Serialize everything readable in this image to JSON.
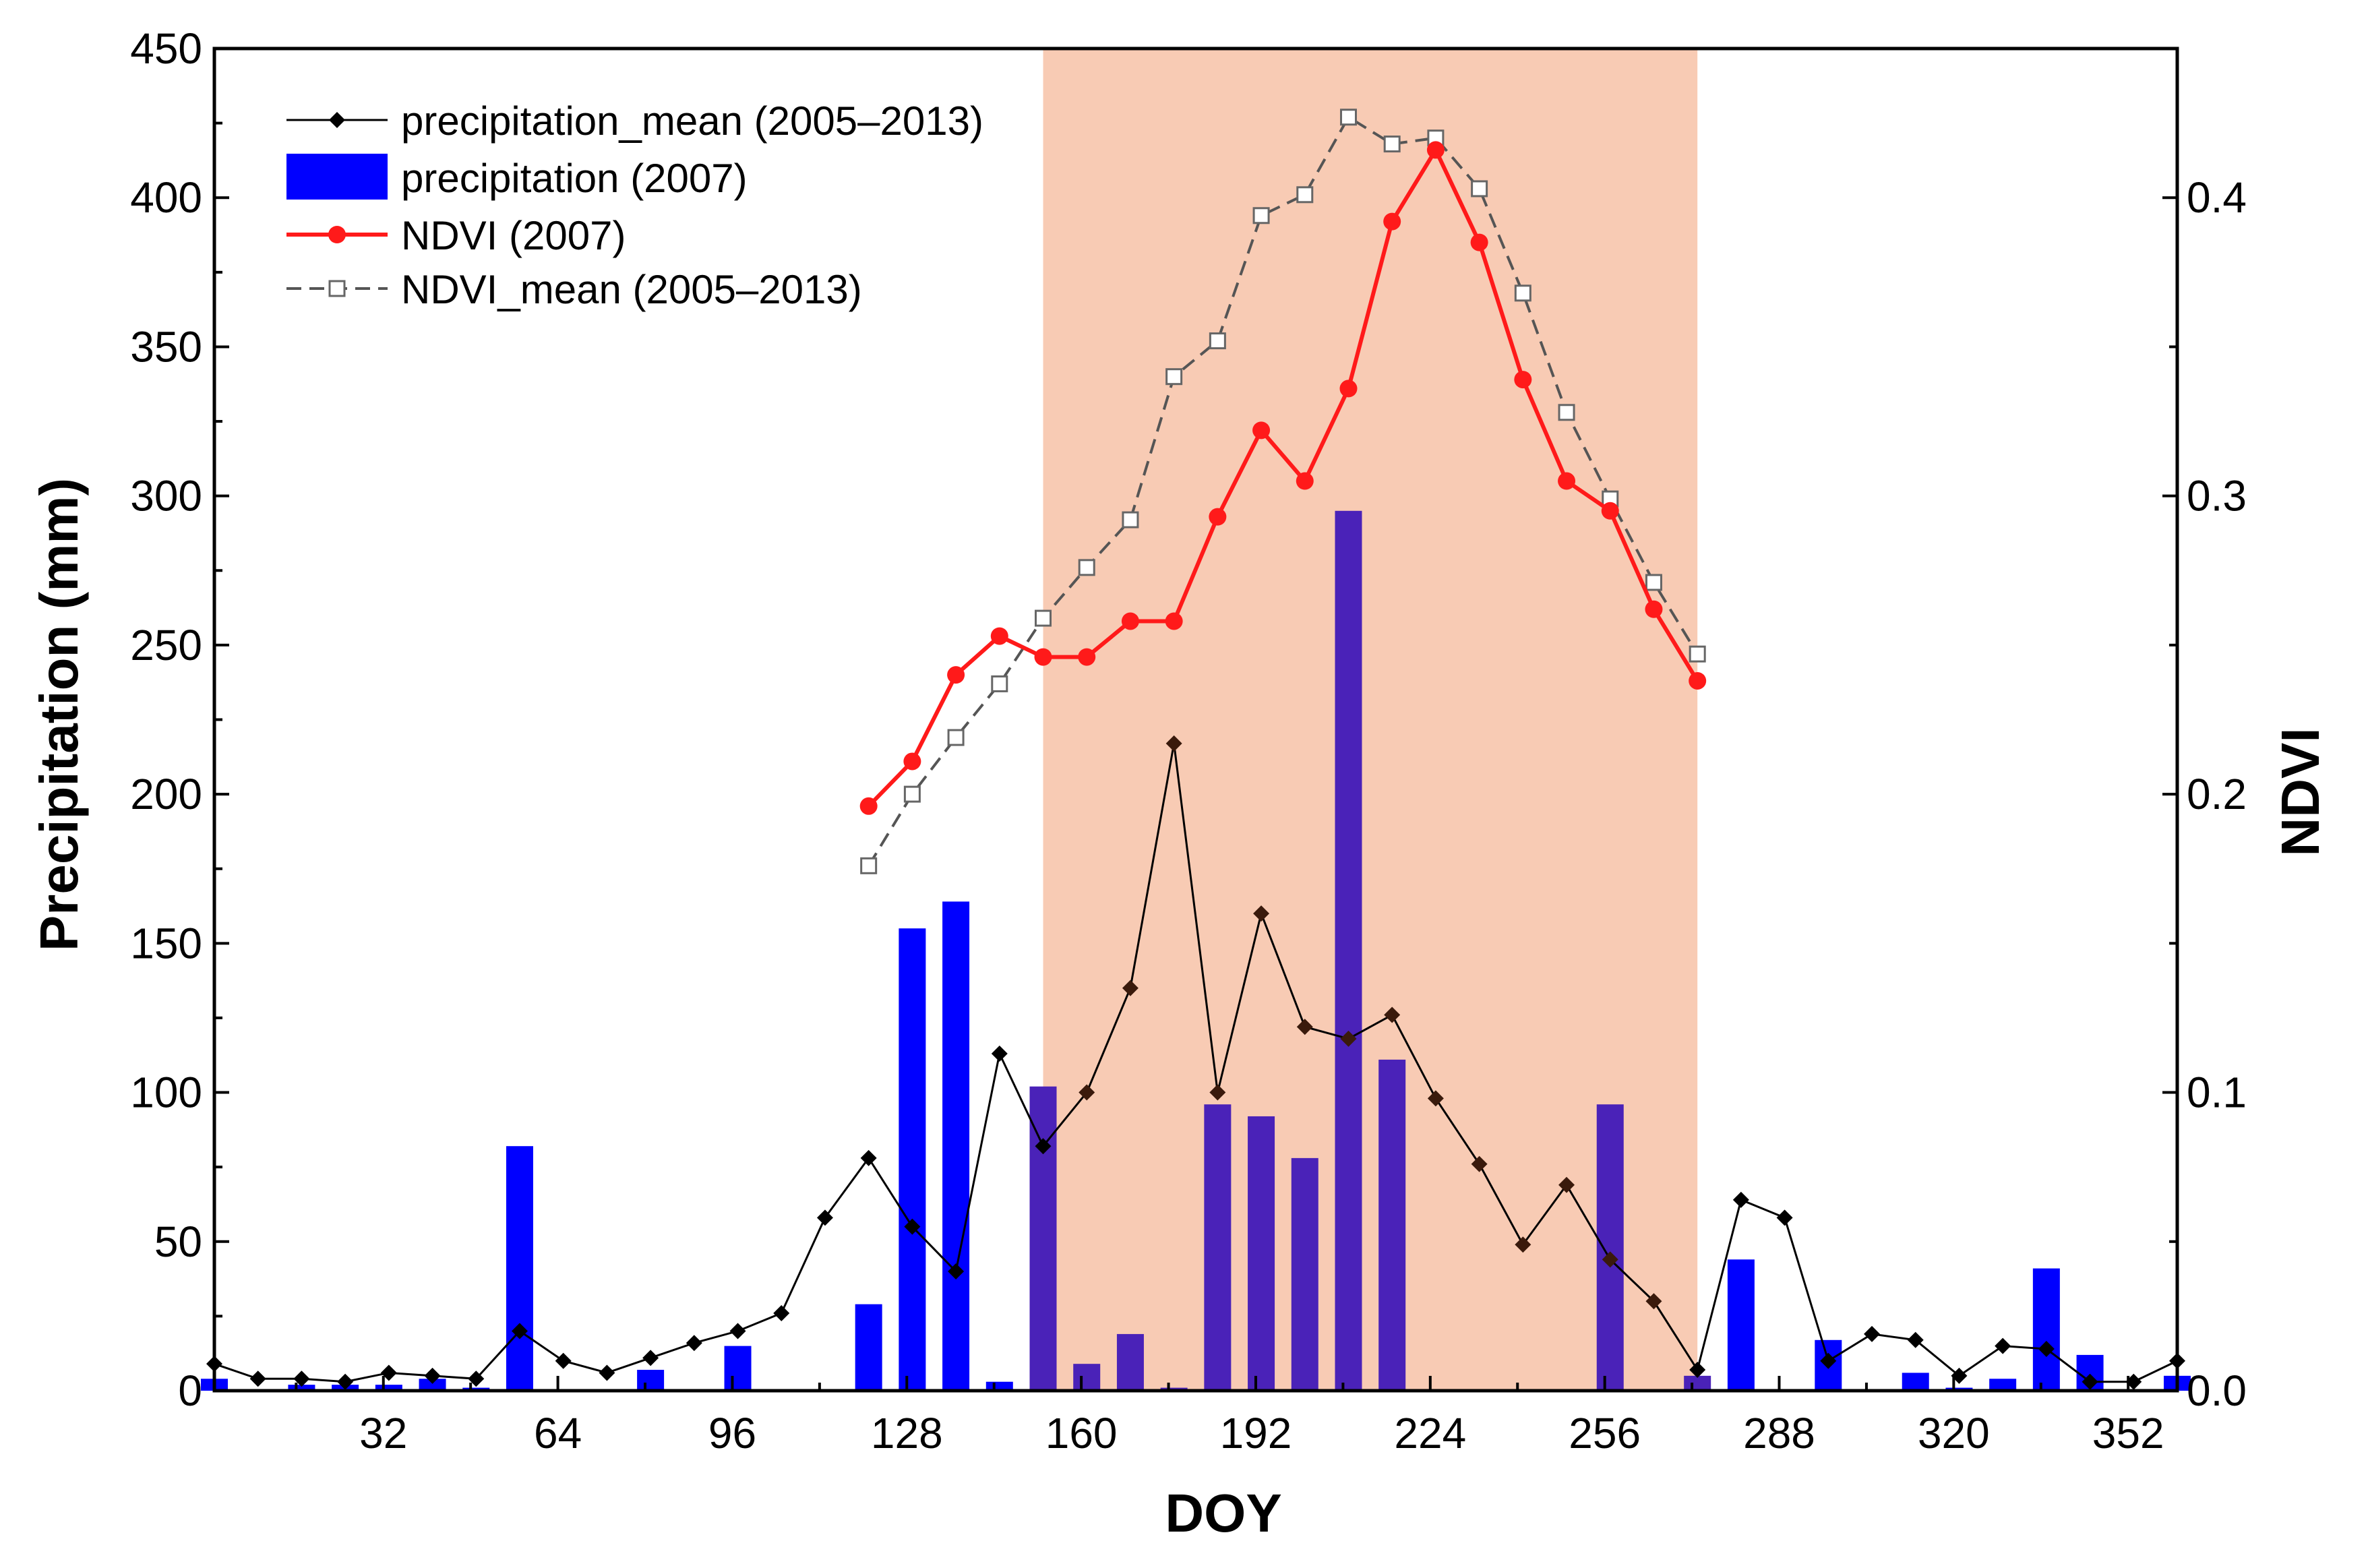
{
  "chart_data": {
    "type": "bar+line",
    "xlabel": "DOY",
    "ylabel_left": "Precipitation (mm)",
    "ylabel_right": "NDVI",
    "xlim": [
      1,
      361
    ],
    "ylim_left": [
      0,
      450
    ],
    "ylim_right": [
      0,
      0.45
    ],
    "x_ticks": [
      "32",
      "64",
      "96",
      "128",
      "160",
      "192",
      "224",
      "256",
      "288",
      "320",
      "352"
    ],
    "y_left_ticks": [
      "0",
      "50",
      "100",
      "150",
      "200",
      "250",
      "300",
      "350",
      "400",
      "450"
    ],
    "y_right_ticks": [
      "0.0",
      "0.1",
      "0.2",
      "0.3",
      "0.4"
    ],
    "highlight_range": [
      153,
      273
    ],
    "highlight_color": "#f8cbb4",
    "legend": {
      "placement": "top-left",
      "entries": [
        "precipitation_mean (2005–2013)",
        "precipitation (2007)",
        "NDVI (2007)",
        "NDVI_mean (2005–2013)"
      ]
    },
    "series": [
      {
        "name": "precipitation (2007)",
        "kind": "bar",
        "axis": "left",
        "color": "#0000ff",
        "x": [
          1,
          17,
          25,
          33,
          41,
          49,
          57,
          81,
          97,
          121,
          129,
          137,
          145,
          153,
          161,
          169,
          177,
          185,
          193,
          201,
          209,
          217,
          257,
          273,
          281,
          297,
          313,
          321,
          329,
          337,
          345,
          361
        ],
        "y": [
          4,
          2,
          2,
          2,
          4,
          1,
          82,
          7,
          15,
          29,
          155,
          164,
          3,
          102,
          9,
          19,
          1,
          96,
          92,
          78,
          295,
          111,
          96,
          5,
          44,
          17,
          6,
          1,
          4,
          41,
          12,
          5
        ]
      },
      {
        "name": "precipitation_mean (2005–2013)",
        "kind": "line",
        "axis": "left",
        "color": "#000000",
        "x": [
          1,
          9,
          17,
          25,
          33,
          41,
          49,
          57,
          65,
          73,
          81,
          89,
          97,
          105,
          113,
          121,
          129,
          137,
          145,
          153,
          161,
          169,
          177,
          185,
          193,
          201,
          209,
          217,
          225,
          233,
          241,
          249,
          257,
          265,
          273,
          281,
          289,
          297,
          305,
          313,
          321,
          329,
          337,
          345,
          353,
          361
        ],
        "y": [
          9,
          4,
          4,
          3,
          6,
          5,
          4,
          20,
          10,
          6,
          11,
          16,
          20,
          26,
          58,
          78,
          55,
          40,
          113,
          82,
          100,
          135,
          217,
          100,
          160,
          122,
          118,
          126,
          98,
          76,
          49,
          69,
          44,
          30,
          7,
          64,
          58,
          10,
          19,
          17,
          5,
          15,
          14,
          3,
          3,
          10
        ]
      },
      {
        "name": "NDVI (2007)",
        "kind": "line",
        "axis": "right",
        "color": "#ff1a1a",
        "x": [
          121,
          129,
          137,
          145,
          153,
          161,
          169,
          177,
          185,
          193,
          201,
          209,
          217,
          225,
          233,
          241,
          249,
          257,
          265,
          273
        ],
        "y": [
          0.196,
          0.211,
          0.24,
          0.253,
          0.246,
          0.246,
          0.258,
          0.258,
          0.293,
          0.322,
          0.305,
          0.336,
          0.392,
          0.416,
          0.385,
          0.339,
          0.305,
          0.295,
          0.262,
          0.238
        ]
      },
      {
        "name": "NDVI_mean (2005–2013)",
        "kind": "line",
        "axis": "right",
        "color": "#666666",
        "x": [
          121,
          129,
          137,
          145,
          153,
          161,
          169,
          177,
          185,
          193,
          201,
          209,
          217,
          225,
          233,
          241,
          249,
          257,
          265,
          273
        ],
        "y": [
          0.176,
          0.2,
          0.219,
          0.237,
          0.259,
          0.276,
          0.292,
          0.34,
          0.352,
          0.394,
          0.401,
          0.427,
          0.418,
          0.42,
          0.403,
          0.368,
          0.328,
          0.299,
          0.271,
          0.247
        ]
      }
    ]
  }
}
